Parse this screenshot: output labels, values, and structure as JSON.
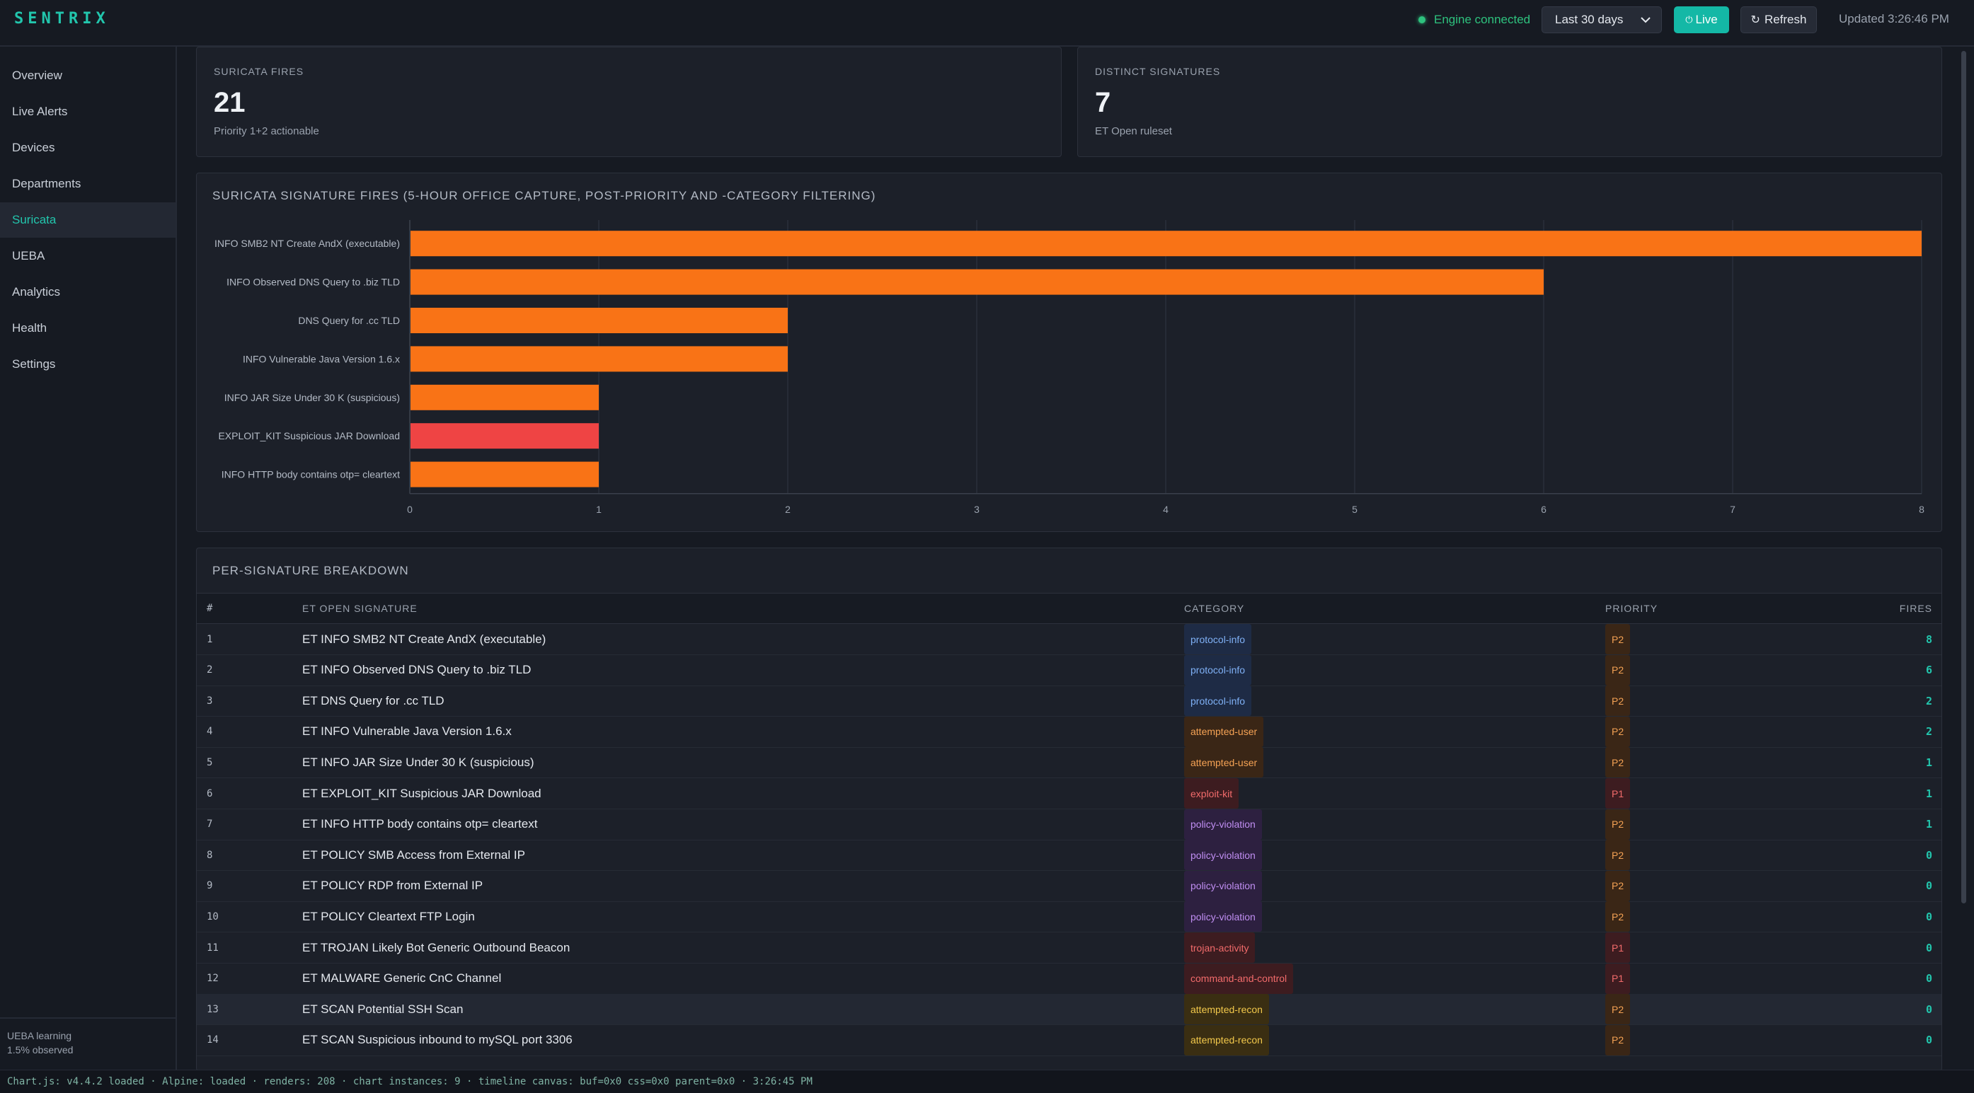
{
  "app": {
    "brand": "SENTRIX"
  },
  "header": {
    "engine_status": "Engine connected",
    "range_selected": "Last 30 days",
    "live_label": "Live",
    "refresh_label": "Refresh",
    "updated": "Updated 3:26:46 PM"
  },
  "sidebar": {
    "items": [
      {
        "label": "Overview"
      },
      {
        "label": "Live Alerts"
      },
      {
        "label": "Devices"
      },
      {
        "label": "Departments"
      },
      {
        "label": "Suricata",
        "active": true
      },
      {
        "label": "UEBA"
      },
      {
        "label": "Analytics"
      },
      {
        "label": "Health"
      },
      {
        "label": "Settings"
      }
    ],
    "footer_line1": "UEBA learning",
    "footer_line2": "1.5% observed"
  },
  "kpis": [
    {
      "label": "SURICATA FIRES",
      "value": "21",
      "sub": "Priority 1+2 actionable"
    },
    {
      "label": "DISTINCT SIGNATURES",
      "value": "7",
      "sub": "ET Open ruleset"
    }
  ],
  "chart_section": {
    "title": "SURICATA SIGNATURE FIRES (5-HOUR OFFICE CAPTURE, POST-PRIORITY AND -CATEGORY FILTERING)"
  },
  "chart_data": {
    "type": "bar",
    "orientation": "horizontal",
    "title": "SURICATA SIGNATURE FIRES (5-HOUR OFFICE CAPTURE, POST-PRIORITY AND -CATEGORY FILTERING)",
    "categories": [
      "INFO SMB2 NT Create AndX (executable)",
      "INFO Observed DNS Query to .biz TLD",
      "DNS Query for .cc TLD",
      "INFO Vulnerable Java Version 1.6.x",
      "INFO JAR Size Under 30 K (suspicious)",
      "EXPLOIT_KIT Suspicious JAR Download",
      "INFO HTTP body contains otp= cleartext"
    ],
    "values": [
      8,
      6,
      2,
      2,
      1,
      1,
      1
    ],
    "bar_colors": [
      "#f97316",
      "#f97316",
      "#f97316",
      "#f97316",
      "#f97316",
      "#ef4444",
      "#f97316"
    ],
    "xlim": [
      0,
      8
    ],
    "xticks": [
      "0",
      "1",
      "2",
      "3",
      "4",
      "5",
      "6",
      "7",
      "8"
    ],
    "grid": true,
    "legend": "none"
  },
  "table": {
    "title": "PER-SIGNATURE BREAKDOWN",
    "columns": [
      "#",
      "ET OPEN SIGNATURE",
      "CATEGORY",
      "PRIORITY",
      "FIRES"
    ],
    "rows": [
      {
        "n": "1",
        "sig": "ET INFO SMB2 NT Create AndX (executable)",
        "cat": "protocol-info",
        "pri": "P2",
        "fires": "8"
      },
      {
        "n": "2",
        "sig": "ET INFO Observed DNS Query to .biz TLD",
        "cat": "protocol-info",
        "pri": "P2",
        "fires": "6"
      },
      {
        "n": "3",
        "sig": "ET DNS Query for .cc TLD",
        "cat": "protocol-info",
        "pri": "P2",
        "fires": "2"
      },
      {
        "n": "4",
        "sig": "ET INFO Vulnerable Java Version 1.6.x",
        "cat": "attempted-user",
        "pri": "P2",
        "fires": "2"
      },
      {
        "n": "5",
        "sig": "ET INFO JAR Size Under 30 K (suspicious)",
        "cat": "attempted-user",
        "pri": "P2",
        "fires": "1"
      },
      {
        "n": "6",
        "sig": "ET EXPLOIT_KIT Suspicious JAR Download",
        "cat": "exploit-kit",
        "pri": "P1",
        "fires": "1"
      },
      {
        "n": "7",
        "sig": "ET INFO HTTP body contains otp= cleartext",
        "cat": "policy-violation",
        "pri": "P2",
        "fires": "1"
      },
      {
        "n": "8",
        "sig": "ET POLICY SMB Access from External IP",
        "cat": "policy-violation",
        "pri": "P2",
        "fires": "0"
      },
      {
        "n": "9",
        "sig": "ET POLICY RDP from External IP",
        "cat": "policy-violation",
        "pri": "P2",
        "fires": "0"
      },
      {
        "n": "10",
        "sig": "ET POLICY Cleartext FTP Login",
        "cat": "policy-violation",
        "pri": "P2",
        "fires": "0"
      },
      {
        "n": "11",
        "sig": "ET TROJAN Likely Bot Generic Outbound Beacon",
        "cat": "trojan-activity",
        "pri": "P1",
        "fires": "0"
      },
      {
        "n": "12",
        "sig": "ET MALWARE Generic CnC Channel",
        "cat": "command-and-control",
        "pri": "P1",
        "fires": "0"
      },
      {
        "n": "13",
        "sig": "ET SCAN Potential SSH Scan",
        "cat": "attempted-recon",
        "pri": "P2",
        "fires": "0"
      },
      {
        "n": "14",
        "sig": "ET SCAN Suspicious inbound to mySQL port 3306",
        "cat": "attempted-recon",
        "pri": "P2",
        "fires": "0"
      }
    ],
    "category_colors": {
      "protocol-info": {
        "fg": "#7fb0f5",
        "bg": "#1e2b45"
      },
      "attempted-user": {
        "fg": "#f5a254",
        "bg": "#3a2616"
      },
      "exploit-kit": {
        "fg": "#f26b6b",
        "bg": "#3d1c20"
      },
      "policy-violation": {
        "fg": "#c08ef2",
        "bg": "#2d2040"
      },
      "trojan-activity": {
        "fg": "#f26b6b",
        "bg": "#3d1c20"
      },
      "command-and-control": {
        "fg": "#f26b6b",
        "bg": "#3d1c20"
      },
      "attempted-recon": {
        "fg": "#f2c84b",
        "bg": "#3a2e12"
      }
    },
    "priority_colors": {
      "P1": {
        "fg": "#f26b6b",
        "bg": "#3d1c20"
      },
      "P2": {
        "fg": "#f5a254",
        "bg": "#3a2616"
      }
    }
  },
  "statusline": "Chart.js: v4.4.2 loaded · Alpine: loaded · renders: 208 · chart instances: 9 · timeline canvas: buf=0x0 css=0x0 parent=0x0 · 3:26:45 PM"
}
